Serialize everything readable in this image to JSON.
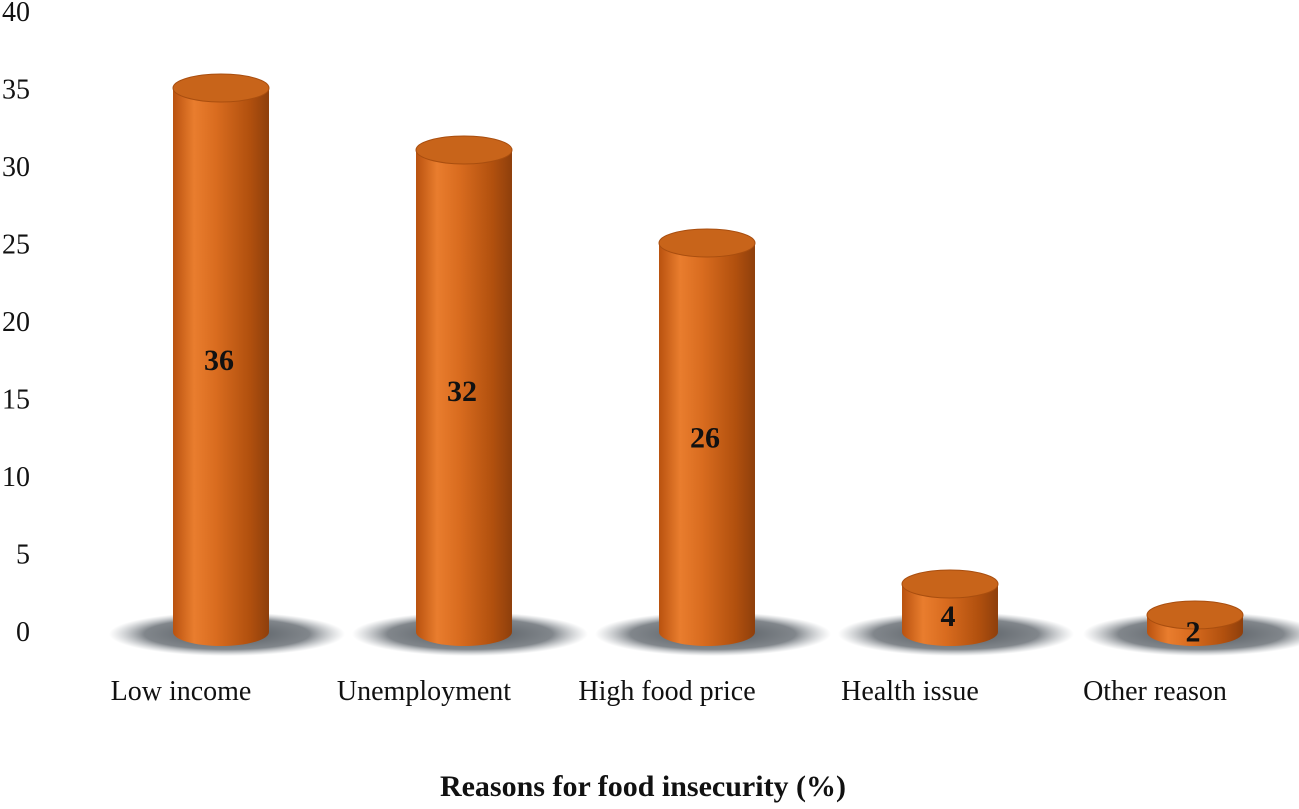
{
  "chart_data": {
    "type": "bar",
    "categories": [
      "Low income",
      "Unemployment",
      "High food price",
      "Health issue",
      "Other reason"
    ],
    "values": [
      36,
      32,
      26,
      4,
      2
    ],
    "title": "",
    "xlabel": "Reasons for food insecurity  (%)",
    "ylabel": "",
    "ylim": [
      0,
      40
    ],
    "yticks": [
      0,
      5,
      10,
      15,
      20,
      25,
      30,
      35,
      40
    ],
    "grid": false,
    "legend": "none",
    "bar_style": "3d-cylinder",
    "colors": {
      "bar": "#D2691E",
      "bar_dark": "#8E3F0C",
      "bar_light": "#EF8A3C",
      "top": "#C8641A",
      "shadow": "#5A6066",
      "text": "#111111"
    }
  }
}
